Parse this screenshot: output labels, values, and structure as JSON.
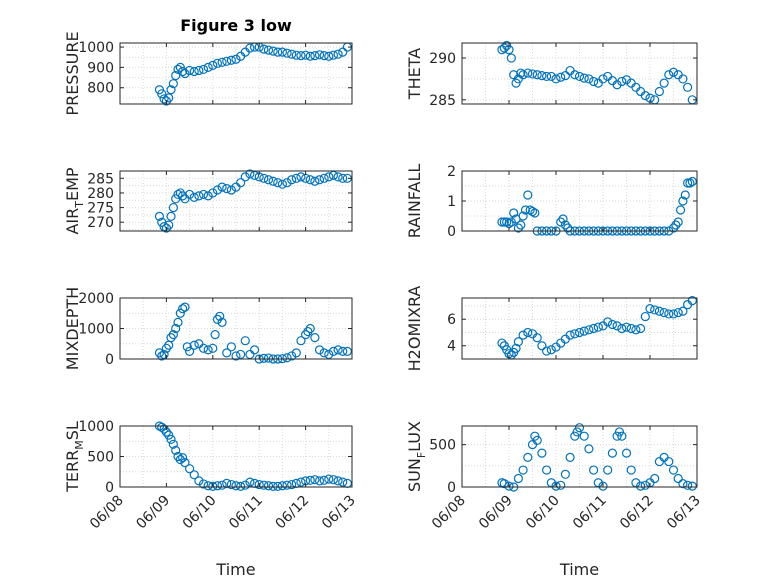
{
  "title": "Figure 3 low",
  "chart_data": [
    {
      "type": "scatter",
      "ylabel": "PRESSURE",
      "ylim": [
        720,
        1020
      ],
      "yticks": [
        800,
        900,
        1000
      ],
      "xticks": [
        "06/08",
        "06/09",
        "06/10",
        "06/11",
        "06/12",
        "06/13"
      ],
      "xlabel": "",
      "x": [
        0.85,
        0.9,
        0.95,
        1.0,
        1.05,
        1.1,
        1.15,
        1.2,
        1.25,
        1.3,
        1.35,
        1.4,
        1.5,
        1.6,
        1.7,
        1.8,
        1.9,
        2.0,
        2.1,
        2.2,
        2.3,
        2.4,
        2.5,
        2.6,
        2.7,
        2.8,
        2.9,
        3.0,
        3.1,
        3.2,
        3.3,
        3.4,
        3.5,
        3.6,
        3.7,
        3.8,
        3.9,
        4.0,
        4.1,
        4.2,
        4.3,
        4.4,
        4.5,
        4.6,
        4.7,
        4.8,
        4.9
      ],
      "values": [
        790,
        770,
        745,
        735,
        750,
        790,
        820,
        860,
        890,
        900,
        880,
        870,
        885,
        880,
        885,
        890,
        900,
        910,
        920,
        925,
        930,
        935,
        940,
        955,
        975,
        995,
        1000,
        1000,
        990,
        985,
        980,
        975,
        975,
        970,
        965,
        960,
        958,
        960,
        955,
        958,
        962,
        958,
        955,
        960,
        965,
        975,
        1000
      ]
    },
    {
      "type": "scatter",
      "ylabel": "THETA",
      "ylim": [
        284.5,
        291.8
      ],
      "yticks": [
        285,
        290
      ],
      "xticks": [
        "06/08",
        "06/09",
        "06/10",
        "06/11",
        "06/12",
        "06/13"
      ],
      "xlabel": "",
      "x": [
        0.85,
        0.9,
        0.95,
        1.0,
        1.05,
        1.1,
        1.15,
        1.2,
        1.25,
        1.3,
        1.4,
        1.5,
        1.6,
        1.7,
        1.8,
        1.9,
        2.0,
        2.1,
        2.2,
        2.3,
        2.4,
        2.5,
        2.6,
        2.7,
        2.8,
        2.9,
        3.0,
        3.1,
        3.2,
        3.3,
        3.4,
        3.5,
        3.6,
        3.7,
        3.8,
        3.9,
        4.0,
        4.1,
        4.2,
        4.3,
        4.4,
        4.5,
        4.6,
        4.7,
        4.8,
        4.9
      ],
      "values": [
        291,
        291.2,
        291.5,
        291,
        290,
        288,
        287,
        287.5,
        288.2,
        288,
        288.2,
        288.1,
        288,
        287.9,
        287.8,
        287.8,
        287.5,
        287.7,
        287.9,
        288.5,
        288,
        287.8,
        287.6,
        287.5,
        287.2,
        287,
        287.5,
        287.8,
        287.3,
        286.8,
        287.2,
        287.4,
        287,
        286.5,
        286,
        285.5,
        285.2,
        285,
        286,
        287,
        288,
        288.3,
        288,
        287.5,
        286.5,
        285
      ]
    },
    {
      "type": "scatter",
      "ylabel": "AIR_TEMP",
      "ylim": [
        267,
        287.5
      ],
      "yticks": [
        270,
        275,
        280,
        285
      ],
      "xticks": [
        "06/08",
        "06/09",
        "06/10",
        "06/11",
        "06/12",
        "06/13"
      ],
      "xlabel": "",
      "x": [
        0.85,
        0.9,
        0.95,
        1.0,
        1.05,
        1.1,
        1.15,
        1.2,
        1.25,
        1.3,
        1.35,
        1.4,
        1.5,
        1.6,
        1.7,
        1.8,
        1.9,
        2.0,
        2.1,
        2.2,
        2.3,
        2.4,
        2.5,
        2.6,
        2.7,
        2.8,
        2.9,
        3.0,
        3.1,
        3.2,
        3.3,
        3.4,
        3.5,
        3.6,
        3.7,
        3.8,
        3.9,
        4.0,
        4.1,
        4.2,
        4.3,
        4.4,
        4.5,
        4.6,
        4.7,
        4.8,
        4.9
      ],
      "values": [
        272,
        270,
        268.5,
        268,
        269,
        272,
        275,
        278,
        279.5,
        280,
        279,
        278,
        279.5,
        278.5,
        279,
        279.5,
        279,
        280,
        281,
        282,
        281.5,
        281,
        282,
        283.5,
        285.5,
        286.5,
        286,
        285.5,
        285,
        284.5,
        284,
        283.5,
        283,
        283.5,
        284.5,
        285,
        285.5,
        285,
        284.5,
        284,
        284.5,
        285,
        285.5,
        286,
        285.5,
        285,
        285
      ]
    },
    {
      "type": "scatter",
      "ylabel": "RAINFALL",
      "ylim": [
        0,
        2
      ],
      "yticks": [
        0,
        1,
        2
      ],
      "xticks": [
        "06/08",
        "06/09",
        "06/10",
        "06/11",
        "06/12",
        "06/13"
      ],
      "xlabel": "",
      "x": [
        0.85,
        0.9,
        0.95,
        1.0,
        1.05,
        1.1,
        1.15,
        1.2,
        1.25,
        1.3,
        1.35,
        1.4,
        1.45,
        1.5,
        1.55,
        1.6,
        1.7,
        1.8,
        1.9,
        2.0,
        2.1,
        2.15,
        2.2,
        2.25,
        2.3,
        2.4,
        2.5,
        2.6,
        2.7,
        2.8,
        2.9,
        3.0,
        3.1,
        3.2,
        3.3,
        3.4,
        3.5,
        3.6,
        3.7,
        3.8,
        3.9,
        4.0,
        4.1,
        4.2,
        4.3,
        4.4,
        4.5,
        4.55,
        4.6,
        4.65,
        4.7,
        4.75,
        4.8,
        4.85,
        4.9
      ],
      "values": [
        0.3,
        0.3,
        0.3,
        0.25,
        0.3,
        0.6,
        0.4,
        0.1,
        0.2,
        0.5,
        0.7,
        1.2,
        0.7,
        0.65,
        0.6,
        0,
        0,
        0,
        0,
        0,
        0.3,
        0.4,
        0.2,
        0.1,
        0,
        0,
        0,
        0,
        0,
        0,
        0,
        0,
        0,
        0,
        0,
        0,
        0,
        0,
        0,
        0,
        0,
        0,
        0,
        0,
        0,
        0,
        0.1,
        0.2,
        0.3,
        0.7,
        1.0,
        1.2,
        1.6,
        1.6,
        1.65
      ]
    },
    {
      "type": "scatter",
      "ylabel": "MIXDEPTH",
      "ylim": [
        0,
        2000
      ],
      "yticks": [
        0,
        1000,
        2000
      ],
      "xticks": [
        "06/08",
        "06/09",
        "06/10",
        "06/11",
        "06/12",
        "06/13"
      ],
      "xlabel": "",
      "x": [
        0.85,
        0.9,
        0.95,
        1.0,
        1.05,
        1.1,
        1.15,
        1.2,
        1.25,
        1.3,
        1.35,
        1.4,
        1.45,
        1.5,
        1.6,
        1.7,
        1.8,
        1.9,
        2.0,
        2.05,
        2.1,
        2.15,
        2.2,
        2.3,
        2.4,
        2.5,
        2.6,
        2.7,
        2.8,
        2.9,
        3.0,
        3.1,
        3.2,
        3.3,
        3.4,
        3.5,
        3.6,
        3.7,
        3.8,
        3.9,
        4.0,
        4.05,
        4.1,
        4.2,
        4.3,
        4.4,
        4.5,
        4.6,
        4.7,
        4.8,
        4.9
      ],
      "values": [
        200,
        100,
        150,
        350,
        450,
        700,
        800,
        1000,
        1200,
        1500,
        1650,
        1700,
        400,
        250,
        450,
        500,
        350,
        300,
        350,
        800,
        1300,
        1400,
        1200,
        200,
        400,
        100,
        150,
        600,
        150,
        300,
        0,
        20,
        30,
        0,
        0,
        10,
        40,
        100,
        200,
        600,
        800,
        900,
        1000,
        700,
        300,
        200,
        150,
        250,
        300,
        250,
        250
      ]
    },
    {
      "type": "scatter",
      "ylabel": "H2OMIXRA",
      "ylim": [
        3,
        7.6
      ],
      "yticks": [
        4,
        6
      ],
      "xticks": [
        "06/08",
        "06/09",
        "06/10",
        "06/11",
        "06/12",
        "06/13"
      ],
      "xlabel": "",
      "x": [
        0.85,
        0.9,
        0.95,
        1.0,
        1.05,
        1.1,
        1.15,
        1.2,
        1.3,
        1.4,
        1.5,
        1.6,
        1.7,
        1.8,
        1.9,
        2.0,
        2.1,
        2.2,
        2.3,
        2.4,
        2.5,
        2.6,
        2.7,
        2.8,
        2.9,
        3.0,
        3.1,
        3.2,
        3.3,
        3.4,
        3.5,
        3.6,
        3.7,
        3.8,
        3.9,
        4.0,
        4.1,
        4.2,
        4.3,
        4.4,
        4.5,
        4.6,
        4.7,
        4.8,
        4.9
      ],
      "values": [
        4.2,
        4,
        3.7,
        3.4,
        3.3,
        3.5,
        3.8,
        4.3,
        4.8,
        5,
        4.9,
        4.6,
        4,
        3.6,
        3.7,
        3.9,
        4.2,
        4.5,
        4.8,
        4.9,
        5,
        5.1,
        5.2,
        5.3,
        5.4,
        5.5,
        5.8,
        5.6,
        5.5,
        5.3,
        5.4,
        5.3,
        5.2,
        5.3,
        6.2,
        6.8,
        6.7,
        6.6,
        6.5,
        6.4,
        6.4,
        6.5,
        6.6,
        7.1,
        7.4
      ]
    },
    {
      "type": "scatter",
      "ylabel": "TERR_MSL",
      "ylim": [
        0,
        1000
      ],
      "yticks": [
        0,
        500,
        1000
      ],
      "xticks": [
        "06/08",
        "06/09",
        "06/10",
        "06/11",
        "06/12",
        "06/13"
      ],
      "xlabel": "Time",
      "x": [
        0.85,
        0.9,
        0.95,
        1.0,
        1.05,
        1.1,
        1.15,
        1.2,
        1.25,
        1.3,
        1.35,
        1.4,
        1.5,
        1.6,
        1.7,
        1.8,
        1.9,
        2.0,
        2.1,
        2.2,
        2.3,
        2.4,
        2.5,
        2.6,
        2.7,
        2.8,
        2.9,
        3.0,
        3.1,
        3.2,
        3.3,
        3.4,
        3.5,
        3.6,
        3.7,
        3.8,
        3.9,
        4.0,
        4.1,
        4.2,
        4.3,
        4.4,
        4.5,
        4.6,
        4.7,
        4.8,
        4.9
      ],
      "values": [
        1000,
        980,
        950,
        900,
        850,
        780,
        700,
        600,
        500,
        450,
        480,
        400,
        300,
        200,
        100,
        50,
        20,
        10,
        20,
        30,
        60,
        40,
        20,
        10,
        30,
        80,
        60,
        40,
        30,
        20,
        10,
        10,
        20,
        30,
        40,
        60,
        80,
        100,
        110,
        120,
        100,
        110,
        130,
        120,
        100,
        80,
        60
      ]
    },
    {
      "type": "scatter",
      "ylabel": "SUN_FLUX",
      "ylim": [
        0,
        720
      ],
      "yticks": [
        0,
        500
      ],
      "xticks": [
        "06/08",
        "06/09",
        "06/10",
        "06/11",
        "06/12",
        "06/13"
      ],
      "xlabel": "Time",
      "x": [
        0.85,
        0.9,
        1.0,
        1.1,
        1.2,
        1.3,
        1.4,
        1.5,
        1.55,
        1.6,
        1.7,
        1.8,
        1.9,
        2.0,
        2.1,
        2.2,
        2.3,
        2.4,
        2.45,
        2.5,
        2.6,
        2.7,
        2.8,
        2.9,
        3.0,
        3.1,
        3.2,
        3.3,
        3.35,
        3.4,
        3.5,
        3.6,
        3.7,
        3.8,
        3.9,
        4.0,
        4.1,
        4.2,
        4.3,
        4.4,
        4.5,
        4.6,
        4.7,
        4.8,
        4.9
      ],
      "values": [
        50,
        40,
        10,
        0,
        100,
        200,
        350,
        500,
        600,
        550,
        400,
        200,
        50,
        10,
        20,
        150,
        350,
        600,
        650,
        700,
        600,
        450,
        200,
        50,
        10,
        200,
        400,
        600,
        650,
        600,
        400,
        200,
        50,
        10,
        20,
        50,
        100,
        300,
        350,
        300,
        200,
        100,
        40,
        20,
        10
      ]
    }
  ]
}
